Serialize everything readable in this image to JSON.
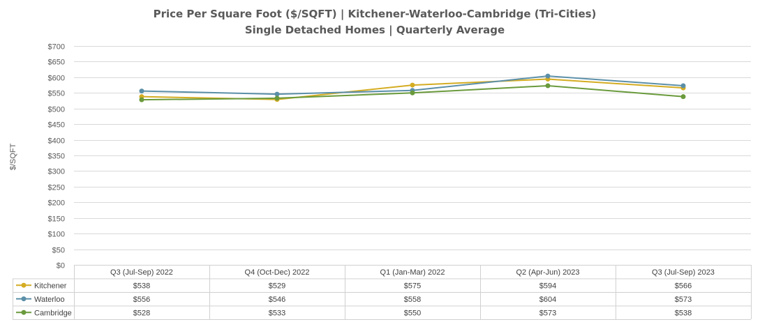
{
  "chart_data": {
    "type": "line",
    "title": "Price Per Square Foot ($/SQFT) | Kitchener-Waterloo-Cambridge (Tri-Cities)",
    "subtitle": "Single Detached Homes | Quarterly Average",
    "ylabel": "$/SQFT",
    "xlabel": "",
    "ylim": [
      0,
      700
    ],
    "ytick_step": 50,
    "ytick_labels": [
      "$0",
      "$50",
      "$100",
      "$150",
      "$200",
      "$250",
      "$300",
      "$350",
      "$400",
      "$450",
      "$500",
      "$550",
      "$600",
      "$650",
      "$700"
    ],
    "grid": true,
    "legend": "data-table",
    "categories": [
      "Q3 (Jul-Sep) 2022",
      "Q4 (Oct-Dec) 2022",
      "Q1 (Jan-Mar) 2022",
      "Q2 (Apr-Jun) 2023",
      "Q3 (Jul-Sep) 2023"
    ],
    "series": [
      {
        "name": "Kitchener",
        "color": "#d4ac22",
        "values": [
          538,
          529,
          575,
          594,
          566
        ],
        "labels": [
          "$538",
          "$529",
          "$575",
          "$594",
          "$566"
        ]
      },
      {
        "name": "Waterloo",
        "color": "#5b8fa8",
        "values": [
          556,
          546,
          558,
          604,
          573
        ],
        "labels": [
          "$556",
          "$546",
          "$558",
          "$604",
          "$573"
        ]
      },
      {
        "name": "Cambridge",
        "color": "#6a9a3c",
        "values": [
          528,
          533,
          550,
          573,
          538
        ],
        "labels": [
          "$528",
          "$533",
          "$550",
          "$573",
          "$538"
        ]
      }
    ]
  }
}
